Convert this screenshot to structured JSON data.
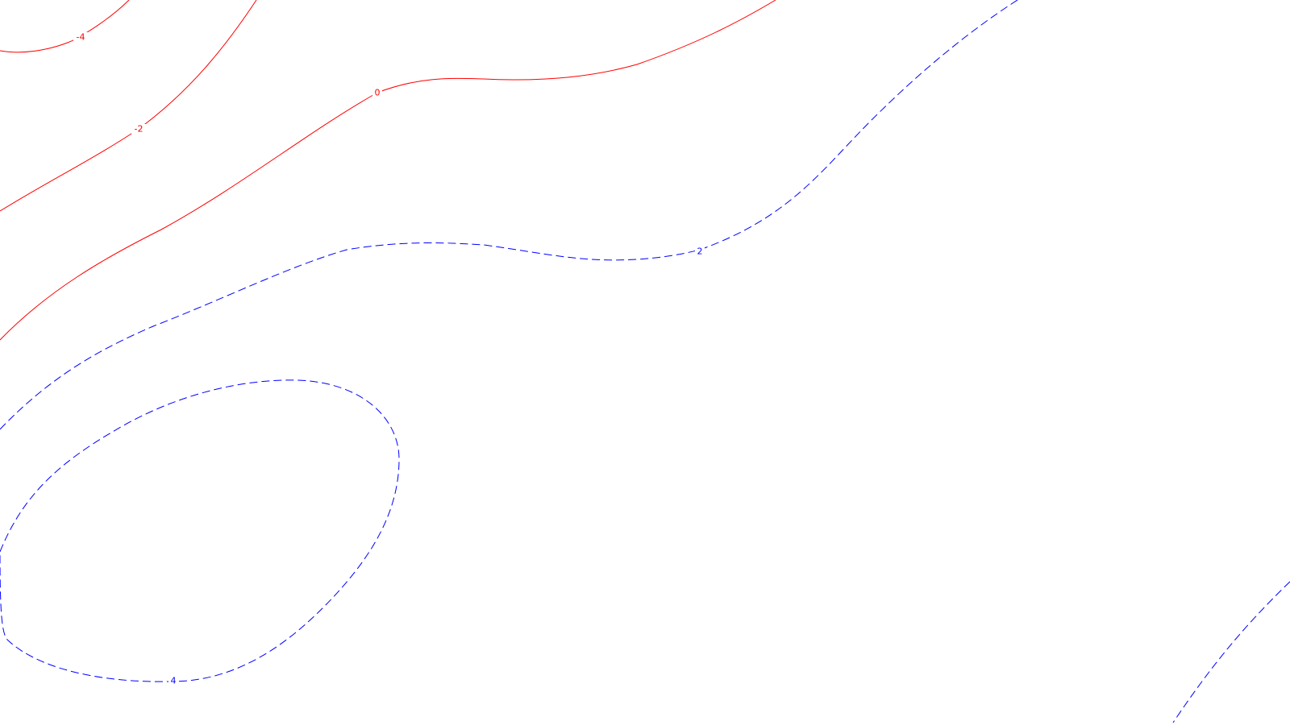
{
  "chart_data": {
    "type": "contour",
    "background": "#ffffff",
    "negative_color": "#ff0000",
    "positive_color": "#0000ff",
    "negative_linestyle": "solid",
    "positive_linestyle": "dashed",
    "contours": [
      {
        "level": -4,
        "label": "-4",
        "color": "#ff0000",
        "dashed": false
      },
      {
        "level": -2,
        "label": "-2",
        "color": "#ff0000",
        "dashed": false
      },
      {
        "level": 0,
        "label": "0",
        "color": "#ff0000",
        "dashed": false
      },
      {
        "level": 2,
        "label": "2",
        "color": "#0000ff",
        "dashed": true
      },
      {
        "level": 2,
        "label": "",
        "color": "#0000ff",
        "dashed": true
      },
      {
        "level": 4,
        "label": "4",
        "color": "#0000ff",
        "dashed": true
      }
    ],
    "grid": false,
    "legend": "none",
    "axes": "none"
  }
}
